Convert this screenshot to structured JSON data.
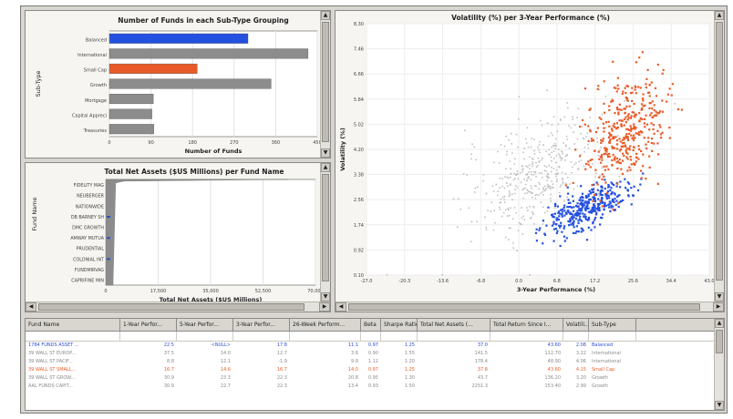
{
  "colors": {
    "blue": "#2450e0",
    "orange": "#e85b28",
    "gray": "#9a9a9a",
    "gray_light": "#c8c8c8"
  },
  "chart_data": [
    {
      "type": "bar",
      "title": "Number of Funds in each Sub-Type Grouping",
      "xlabel": "Number of Funds",
      "ylabel": "Sub-Type",
      "orientation": "horizontal",
      "categories": [
        "Balanced",
        "International",
        "Small Cap",
        "Growth",
        "Mortgage",
        "Capital Appreci",
        "Treasuries"
      ],
      "values": [
        300,
        430,
        190,
        350,
        95,
        92,
        96
      ],
      "bar_colors": [
        "#2450e0",
        "#8c8c8c",
        "#e85b28",
        "#8c8c8c",
        "#8c8c8c",
        "#8c8c8c",
        "#8c8c8c"
      ],
      "xticks": [
        "0",
        "90",
        "180",
        "270",
        "360",
        "450"
      ],
      "xlim": [
        0,
        450
      ]
    },
    {
      "type": "bar",
      "title": "Total Net Assets ($US Millions) per Fund Name",
      "xlabel": "Total Net Assets ($US Millions)",
      "ylabel": "Fund Name",
      "orientation": "horizontal",
      "categories": [
        "FIDELITY MAG",
        "NEUBERGER",
        "NATIONWIDE",
        "DB BARNEY SH",
        "DMC GROWTH",
        "AMWAY MUTUA",
        "PRUDENTIAL",
        "COLONIAL INT",
        "FUNDMIRVAG",
        "CAPRIFINE MIN"
      ],
      "xticks": [
        "0",
        "17,500",
        "35,000",
        "52,500",
        "70,000"
      ],
      "xlim": [
        0,
        70000
      ]
    },
    {
      "type": "scatter",
      "title": "Volatility (%) per 3-Year Performance (%)",
      "xlabel": "3-Year Performance (%)",
      "ylabel": "Volatility (%)",
      "xticks": [
        "-27.0",
        "-20.3",
        "-13.6",
        "-6.8",
        "0.0",
        "6.8",
        "17.2",
        "25.6",
        "34.4",
        "43.0"
      ],
      "yticks": [
        "8.30",
        "7.46",
        "6.66",
        "5.84",
        "5.02",
        "4.20",
        "3.38",
        "2.56",
        "1.74",
        "0.92",
        "0.10"
      ],
      "xlim": [
        -27,
        43
      ],
      "ylim": [
        0.1,
        8.3
      ],
      "series": [
        {
          "color": "#c0c0c0",
          "count": 420,
          "center": [
            8,
            3.4
          ],
          "spread": [
            12,
            1.4
          ]
        },
        {
          "color": "#2450e0",
          "count": 360,
          "center": [
            18,
            2.3
          ],
          "spread": [
            7,
            0.55
          ]
        },
        {
          "color": "#e85b28",
          "count": 380,
          "center": [
            26,
            4.8
          ],
          "spread": [
            7,
            1.35
          ]
        }
      ]
    }
  ],
  "table": {
    "columns": [
      "Fund Name",
      "1-Year Perfor...",
      "5-Year Perfor...",
      "3-Year Perfor...",
      "26-Week Perform...",
      "Beta",
      "Sharpe Ratio",
      "Total Net Assets (...",
      "Total Return Since I...",
      "Volatili...",
      "Sub-Type"
    ],
    "rows": [
      {
        "style": "blue",
        "cells": [
          "1784 FUNDS ASSET ...",
          "22.5",
          "<NULL>",
          "17.8",
          "11.1",
          "0.97",
          "1.25",
          "37.0",
          "43.60",
          "2.08",
          "Balanced"
        ]
      },
      {
        "style": "gray",
        "cells": [
          "39 WALL ST EUROP...",
          "37.5",
          "14.0",
          "12.7",
          "3.6",
          "0.90",
          "1.55",
          "141.5",
          "112.70",
          "3.22",
          "International"
        ]
      },
      {
        "style": "gray",
        "cells": [
          "39 WALL ST PACIF...",
          "8.8",
          "12.1",
          "-1.9",
          "9.8",
          "1.12",
          "1.20",
          "178.4",
          "48.90",
          "4.06",
          "International"
        ]
      },
      {
        "style": "orange",
        "cells": [
          "39 WALL ST SMALL...",
          "16.7",
          "14.6",
          "16.7",
          "14.0",
          "0.97",
          "1.25",
          "37.8",
          "43.60",
          "4.15",
          "Small Cap"
        ]
      },
      {
        "style": "gray",
        "cells": [
          "39 WALL ST GROW...",
          "30.9",
          "23.3",
          "22.3",
          "20.8",
          "0.95",
          "1.30",
          "43.7",
          "136.20",
          "3.20",
          "Growth"
        ]
      },
      {
        "style": "gray",
        "cells": [
          "AAL FUNDS CAPIT...",
          "30.9",
          "22.7",
          "22.3",
          "13.4",
          "0.93",
          "1.50",
          "2251.3",
          "153.40",
          "2.99",
          "Growth"
        ]
      }
    ]
  },
  "scroll_arrows": {
    "up": "▲",
    "down": "▼",
    "left": "◀",
    "right": "▶"
  }
}
